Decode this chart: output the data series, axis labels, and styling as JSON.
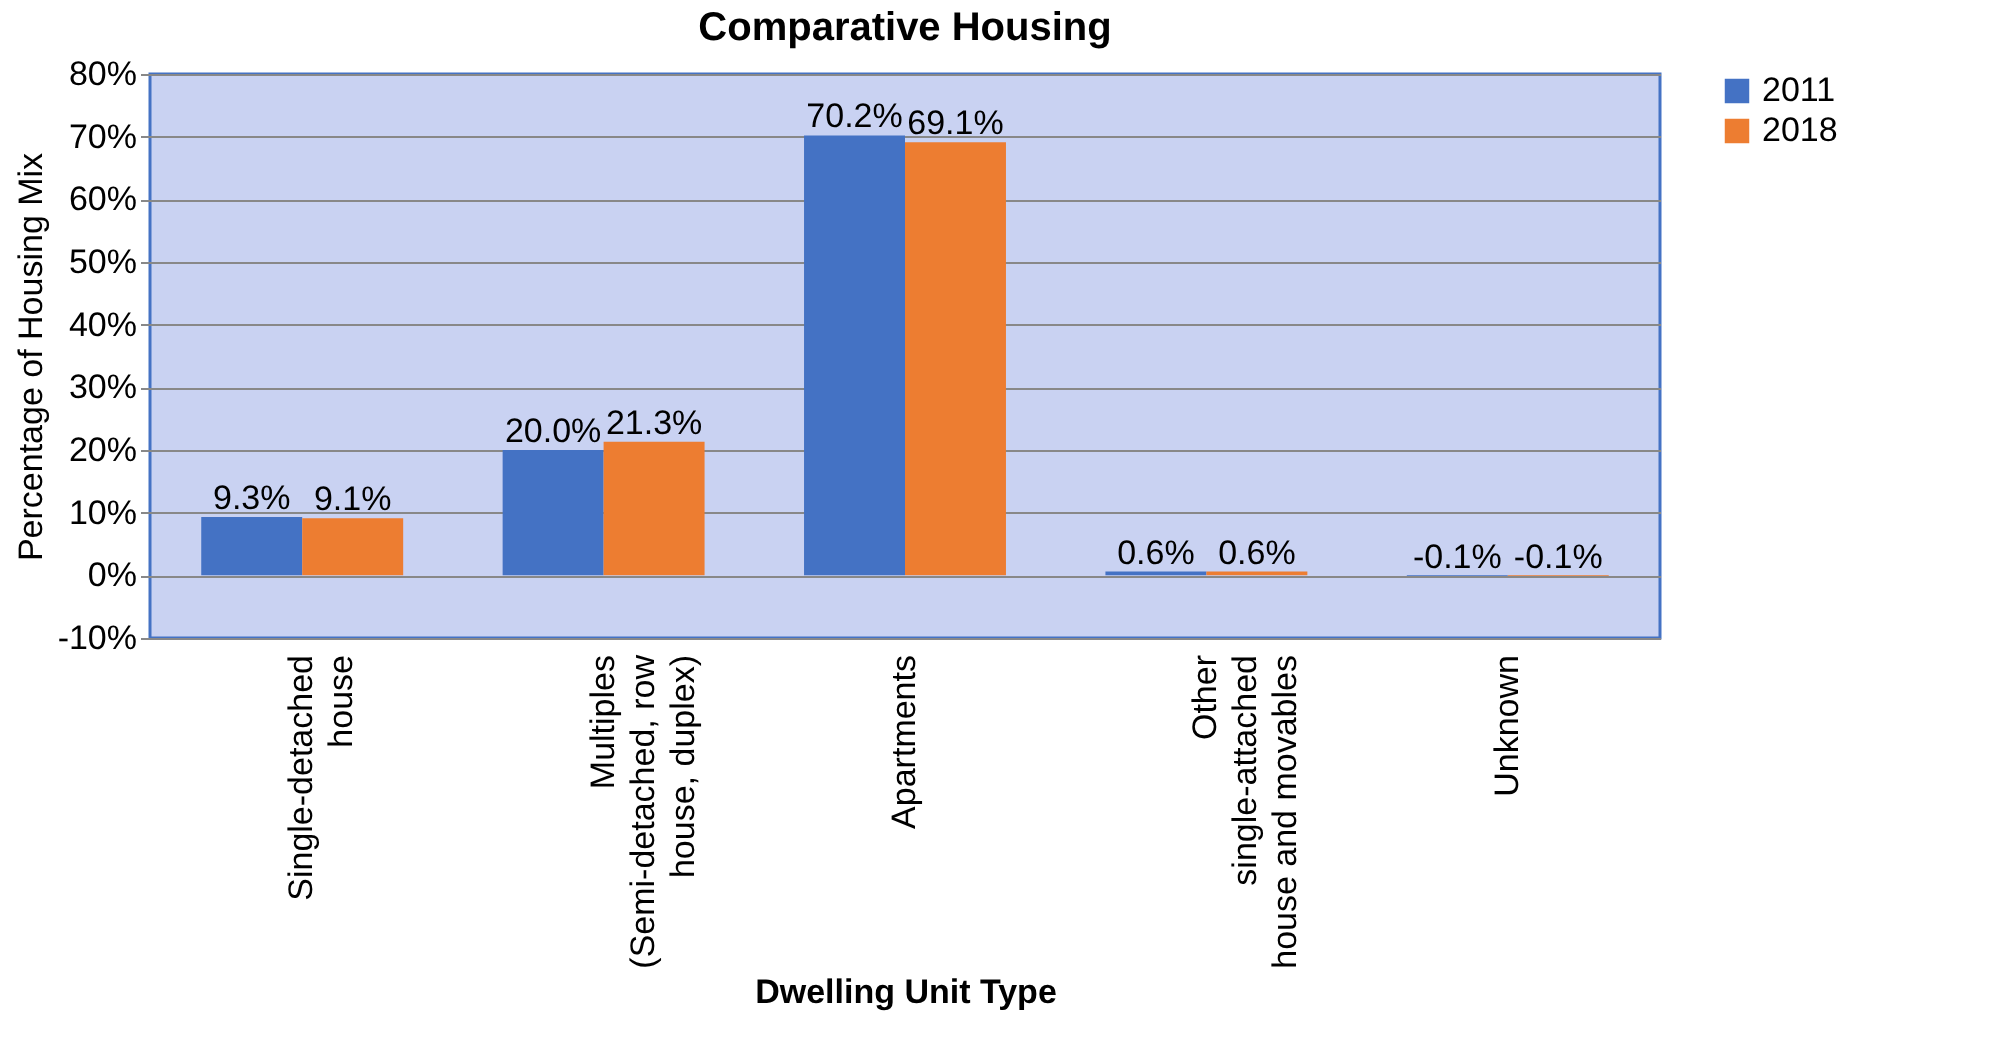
{
  "chart_data": {
    "type": "bar",
    "title": "Comparative Housing",
    "xlabel": "Dwelling Unit Type",
    "ylabel": "Percentage of Housing Mix",
    "categories": [
      "Single-detached house",
      "Multiples (Semi-detached, row house, duplex)",
      "Apartments",
      "Other single-attached house and movables",
      "Unknown"
    ],
    "series": [
      {
        "name": "2011",
        "color": "#4472c4",
        "values": [
          9.3,
          20.0,
          70.2,
          0.6,
          -0.1
        ],
        "value_labels": [
          "9.3%",
          "20.0%",
          "70.2%",
          "0.6%",
          "-0.1%"
        ]
      },
      {
        "name": "2018",
        "color": "#ed7d31",
        "values": [
          9.1,
          21.3,
          69.1,
          0.6,
          -0.1
        ],
        "value_labels": [
          "9.1%",
          "21.3%",
          "69.1%",
          "0.6%",
          "-0.1%"
        ]
      }
    ],
    "ylim": [
      -10,
      80
    ],
    "yticks": [
      {
        "value": -10,
        "label": "-10%"
      },
      {
        "value": 0,
        "label": "0%"
      },
      {
        "value": 10,
        "label": "10%"
      },
      {
        "value": 20,
        "label": "20%"
      },
      {
        "value": 30,
        "label": "30%"
      },
      {
        "value": 40,
        "label": "40%"
      },
      {
        "value": 50,
        "label": "50%"
      },
      {
        "value": 60,
        "label": "60%"
      },
      {
        "value": 70,
        "label": "70%"
      },
      {
        "value": 80,
        "label": "80%"
      }
    ],
    "grid": "y",
    "legend": "right"
  }
}
